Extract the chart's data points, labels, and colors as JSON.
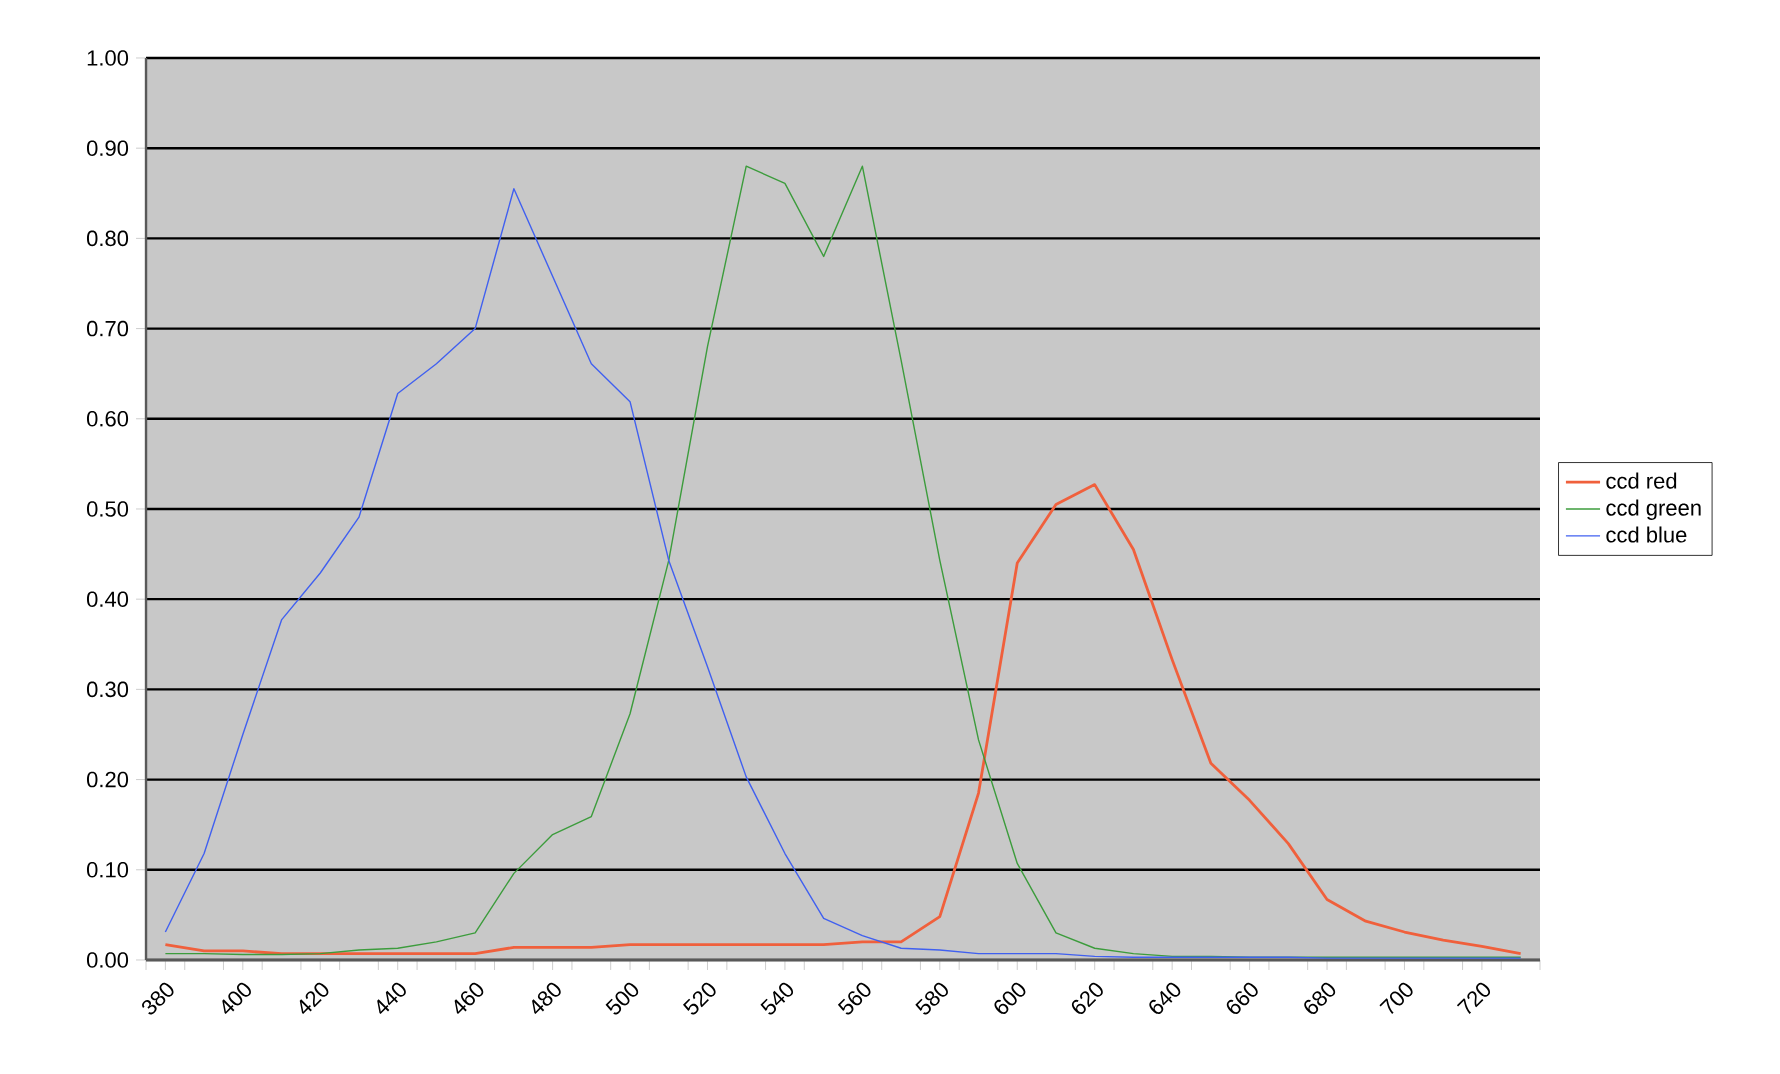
{
  "chart_data": {
    "type": "line",
    "categories": [
      "380",
      null,
      "400",
      null,
      "420",
      null,
      "440",
      null,
      "460",
      null,
      "480",
      null,
      "500",
      null,
      "520",
      null,
      "540",
      null,
      "560",
      null,
      "580",
      null,
      "600",
      null,
      "620",
      null,
      "640",
      null,
      "660",
      null,
      "680",
      null,
      "700",
      null,
      "720",
      null
    ],
    "series": [
      {
        "name": "ccd red",
        "color": "#f0603c",
        "values": [
          0.017,
          0.01,
          0.01,
          0.007,
          0.007,
          0.007,
          0.007,
          0.007,
          0.007,
          0.014,
          0.014,
          0.014,
          0.017,
          0.017,
          0.017,
          0.017,
          0.017,
          0.017,
          0.02,
          0.02,
          0.048,
          0.185,
          0.44,
          0.505,
          0.527,
          0.455,
          0.333,
          0.218,
          0.177,
          0.129,
          0.067,
          0.043,
          0.031,
          0.022,
          0.015,
          0.007
        ]
      },
      {
        "name": "ccd green",
        "color": "#3c9c3c",
        "values": [
          0.007,
          0.007,
          0.006,
          0.006,
          0.007,
          0.011,
          0.013,
          0.02,
          0.03,
          0.096,
          0.139,
          0.159,
          0.273,
          0.443,
          0.68,
          0.88,
          0.861,
          0.78,
          0.88,
          0.665,
          0.443,
          0.244,
          0.107,
          0.03,
          0.013,
          0.007,
          0.004,
          0.004,
          0.003,
          0.003,
          0.003,
          0.003,
          0.003,
          0.003,
          0.003,
          0.003
        ]
      },
      {
        "name": "ccd blue",
        "color": "#4060f0",
        "values": [
          0.031,
          0.118,
          0.25,
          0.377,
          0.429,
          0.491,
          0.628,
          0.661,
          0.7,
          0.855,
          0.758,
          0.661,
          0.619,
          0.443,
          0.325,
          0.203,
          0.118,
          0.046,
          0.027,
          0.013,
          0.011,
          0.007,
          0.007,
          0.007,
          0.004,
          0.003,
          0.003,
          0.003,
          0.003,
          0.003,
          0.002,
          0.002,
          0.002,
          0.002,
          0.002,
          0.002
        ]
      }
    ],
    "ylim": [
      0,
      1
    ],
    "yticks": [
      {
        "value": 0,
        "label": "0.00"
      },
      {
        "value": 0.1,
        "label": "0.10"
      },
      {
        "value": 0.2,
        "label": "0.20"
      },
      {
        "value": 0.3,
        "label": "0.30"
      },
      {
        "value": 0.4,
        "label": "0.40"
      },
      {
        "value": 0.5,
        "label": "0.50"
      },
      {
        "value": 0.6,
        "label": "0.60"
      },
      {
        "value": 0.7,
        "label": "0.70"
      },
      {
        "value": 0.8,
        "label": "0.80"
      },
      {
        "value": 0.9,
        "label": "0.90"
      },
      {
        "value": 1,
        "label": "1.00"
      }
    ],
    "grid": "y",
    "legend": "right",
    "marker": "none",
    "line_style": "solid"
  }
}
